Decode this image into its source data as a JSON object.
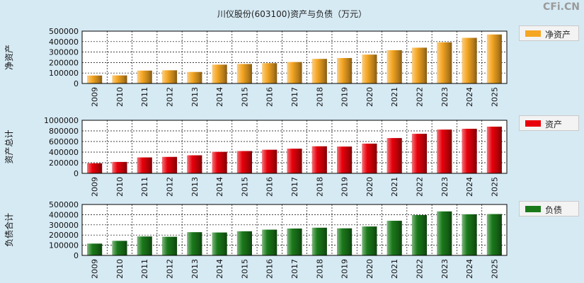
{
  "page": {
    "title": "川仪股份(603100)资产与负债（万元）",
    "watermark": "CFi.CN"
  },
  "chart_data": [
    {
      "type": "bar",
      "id": "net-assets",
      "ylabel": "净资产",
      "legend": "净资产",
      "color": "#f5a623",
      "ylim": [
        0,
        500000
      ],
      "yticks": [
        0,
        100000,
        200000,
        300000,
        400000,
        500000
      ],
      "categories": [
        "2009",
        "2010",
        "2011",
        "2012",
        "2013",
        "2014",
        "2015",
        "2016",
        "2017",
        "2018",
        "2019",
        "2020",
        "2021",
        "2022",
        "2023",
        "2024",
        "2025"
      ],
      "values": [
        76000,
        77000,
        123000,
        126000,
        110000,
        180000,
        186000,
        194000,
        205000,
        235000,
        243000,
        276000,
        318000,
        342000,
        393000,
        436000,
        468000
      ]
    },
    {
      "type": "bar",
      "id": "total-assets",
      "ylabel": "资产总计",
      "legend": "资产",
      "color": "#e8000b",
      "ylim": [
        0,
        1000000
      ],
      "yticks": [
        0,
        200000,
        400000,
        600000,
        800000,
        1000000
      ],
      "categories": [
        "2009",
        "2010",
        "2011",
        "2012",
        "2013",
        "2014",
        "2015",
        "2016",
        "2017",
        "2018",
        "2019",
        "2020",
        "2021",
        "2022",
        "2023",
        "2024",
        "2025"
      ],
      "values": [
        190000,
        215000,
        300000,
        310000,
        340000,
        405000,
        420000,
        445000,
        465000,
        510000,
        505000,
        560000,
        665000,
        745000,
        825000,
        840000,
        880000
      ]
    },
    {
      "type": "bar",
      "id": "liabilities",
      "ylabel": "负债合计",
      "legend": "负债",
      "color": "#1a7a1a",
      "ylim": [
        0,
        500000
      ],
      "yticks": [
        0,
        100000,
        200000,
        300000,
        400000,
        500000
      ],
      "categories": [
        "2009",
        "2010",
        "2011",
        "2012",
        "2013",
        "2014",
        "2015",
        "2016",
        "2017",
        "2018",
        "2019",
        "2020",
        "2021",
        "2022",
        "2023",
        "2024",
        "2025"
      ],
      "values": [
        116000,
        143000,
        186000,
        183000,
        228000,
        225000,
        237000,
        253000,
        264000,
        272000,
        266000,
        284000,
        340000,
        396000,
        432000,
        404000,
        406000
      ]
    }
  ]
}
